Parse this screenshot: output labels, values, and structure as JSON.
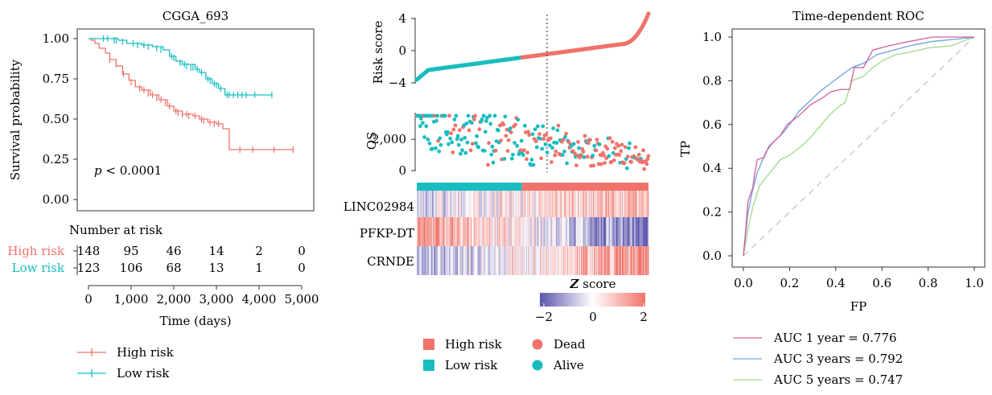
{
  "chart_data": [
    {
      "type": "line",
      "title": "CGGA_693",
      "xlabel": "Time (days)",
      "ylabel": "Survival probability",
      "xlim": [
        0,
        5000
      ],
      "ylim": [
        0,
        1
      ],
      "x_ticks": [
        "0",
        "1,000",
        "2,000",
        "3,000",
        "4,000",
        "5,000"
      ],
      "y_ticks": [
        "0.00",
        "0.25",
        "0.50",
        "0.75",
        "1.00"
      ],
      "annotation": {
        "p": "p",
        "rest": " < 0.0001"
      },
      "series": [
        {
          "name": "High risk",
          "color": "#f0736b",
          "steps": [
            [
              0,
              1.0
            ],
            [
              60,
              0.99
            ],
            [
              150,
              0.97
            ],
            [
              250,
              0.94
            ],
            [
              400,
              0.91
            ],
            [
              500,
              0.87
            ],
            [
              650,
              0.83
            ],
            [
              800,
              0.78
            ],
            [
              950,
              0.74
            ],
            [
              1100,
              0.7
            ],
            [
              1250,
              0.68
            ],
            [
              1450,
              0.65
            ],
            [
              1650,
              0.62
            ],
            [
              1850,
              0.58
            ],
            [
              2000,
              0.55
            ],
            [
              2200,
              0.53
            ],
            [
              2450,
              0.52
            ],
            [
              2600,
              0.5
            ],
            [
              2800,
              0.48
            ],
            [
              3000,
              0.47
            ],
            [
              3150,
              0.44
            ],
            [
              3300,
              0.31
            ],
            [
              4800,
              0.31
            ]
          ],
          "censors": [
            [
              500,
              0.87
            ],
            [
              650,
              0.84
            ],
            [
              820,
              0.78
            ],
            [
              1000,
              0.73
            ],
            [
              1200,
              0.69
            ],
            [
              1300,
              0.68
            ],
            [
              1400,
              0.66
            ],
            [
              1500,
              0.65
            ],
            [
              1600,
              0.63
            ],
            [
              1700,
              0.62
            ],
            [
              1800,
              0.6
            ],
            [
              1900,
              0.58
            ],
            [
              2050,
              0.55
            ],
            [
              2100,
              0.54
            ],
            [
              2200,
              0.53
            ],
            [
              2300,
              0.53
            ],
            [
              2350,
              0.52
            ],
            [
              2500,
              0.52
            ],
            [
              2650,
              0.5
            ],
            [
              2700,
              0.49
            ],
            [
              2850,
              0.48
            ],
            [
              2950,
              0.47
            ],
            [
              3050,
              0.47
            ],
            [
              3550,
              0.31
            ],
            [
              3850,
              0.31
            ],
            [
              4350,
              0.31
            ],
            [
              4800,
              0.31
            ]
          ]
        },
        {
          "name": "Low risk",
          "color": "#19bdbf",
          "steps": [
            [
              0,
              1.0
            ],
            [
              700,
              0.99
            ],
            [
              900,
              0.97
            ],
            [
              1250,
              0.96
            ],
            [
              1500,
              0.95
            ],
            [
              1750,
              0.93
            ],
            [
              1900,
              0.89
            ],
            [
              2050,
              0.86
            ],
            [
              2200,
              0.84
            ],
            [
              2500,
              0.81
            ],
            [
              2600,
              0.79
            ],
            [
              2750,
              0.75
            ],
            [
              2900,
              0.72
            ],
            [
              3050,
              0.69
            ],
            [
              3200,
              0.65
            ],
            [
              4300,
              0.65
            ]
          ],
          "censors": [
            [
              350,
              1.0
            ],
            [
              450,
              1.0
            ],
            [
              600,
              0.99
            ],
            [
              650,
              0.99
            ],
            [
              800,
              0.98
            ],
            [
              1050,
              0.97
            ],
            [
              1150,
              0.96
            ],
            [
              1300,
              0.96
            ],
            [
              1400,
              0.95
            ],
            [
              1600,
              0.94
            ],
            [
              1700,
              0.93
            ],
            [
              1950,
              0.89
            ],
            [
              2000,
              0.88
            ],
            [
              2150,
              0.85
            ],
            [
              2250,
              0.84
            ],
            [
              2300,
              0.83
            ],
            [
              2400,
              0.82
            ],
            [
              2450,
              0.82
            ],
            [
              2550,
              0.81
            ],
            [
              2650,
              0.79
            ],
            [
              2800,
              0.75
            ],
            [
              2850,
              0.74
            ],
            [
              2950,
              0.72
            ],
            [
              3000,
              0.71
            ],
            [
              3100,
              0.69
            ],
            [
              3250,
              0.65
            ],
            [
              3300,
              0.65
            ],
            [
              3400,
              0.65
            ],
            [
              3500,
              0.65
            ],
            [
              3600,
              0.65
            ],
            [
              3700,
              0.65
            ],
            [
              3900,
              0.65
            ],
            [
              4300,
              0.65
            ]
          ]
        }
      ],
      "risk_table": {
        "title": "Number at risk",
        "rows": [
          {
            "name": "High risk",
            "values": [
              "148",
              "95",
              "46",
              "14",
              "2",
              "0"
            ]
          },
          {
            "name": "Low risk",
            "values": [
              "123",
              "106",
              "68",
              "13",
              "1",
              "0"
            ]
          }
        ]
      },
      "legend": [
        "High risk",
        "Low risk"
      ]
    },
    {
      "type": "scatter",
      "panel": "risk-score",
      "ylabel": "Risk score",
      "y_ticks": [
        "4",
        "0",
        "−4"
      ],
      "ylim": [
        -4.6,
        4.6
      ],
      "n_patients": 271,
      "cutoff_index": 123,
      "low_color": "#19bdbf",
      "high_color": "#f0736b",
      "score_range": [
        -3.6,
        4.6
      ]
    },
    {
      "type": "scatter",
      "panel": "os",
      "ylabel": "OS",
      "y_ticks": [
        "2,000",
        "0"
      ],
      "ylim": [
        0,
        3600
      ],
      "dead_color": "#f0736b",
      "alive_color": "#19bdbf"
    },
    {
      "type": "heatmap",
      "rows": [
        "LINC02984",
        "PFKP-DT",
        "CRNDE"
      ],
      "scale_title": {
        "z": "Z",
        "rest": " score"
      },
      "scale_ticks": [
        "−2",
        "0",
        "2"
      ],
      "low_color": "#5b55ad",
      "mid_color": "#ffffff",
      "high_color": "#f0736b",
      "legend": [
        {
          "label": "High risk",
          "shape": "square",
          "color": "#f0736b"
        },
        {
          "label": "Low risk",
          "shape": "square",
          "color": "#19bdbf"
        },
        {
          "label": "Dead",
          "shape": "circle",
          "color": "#f0736b"
        },
        {
          "label": "Alive",
          "shape": "circle",
          "color": "#19bdbf"
        }
      ]
    },
    {
      "type": "line",
      "title": "Time-dependent ROC",
      "xlabel": "FP",
      "ylabel": "TP",
      "xlim": [
        0,
        1
      ],
      "ylim": [
        0,
        1
      ],
      "ticks": [
        "0.0",
        "0.2",
        "0.4",
        "0.6",
        "0.8",
        "1.0"
      ],
      "series": [
        {
          "name": "AUC 1 year = 0.776",
          "color": "#d4609a",
          "points": [
            [
              0,
              0
            ],
            [
              0.01,
              0.12
            ],
            [
              0.02,
              0.25
            ],
            [
              0.04,
              0.31
            ],
            [
              0.05,
              0.38
            ],
            [
              0.06,
              0.44
            ],
            [
              0.09,
              0.45
            ],
            [
              0.11,
              0.5
            ],
            [
              0.16,
              0.55
            ],
            [
              0.19,
              0.6
            ],
            [
              0.24,
              0.64
            ],
            [
              0.29,
              0.69
            ],
            [
              0.34,
              0.72
            ],
            [
              0.38,
              0.75
            ],
            [
              0.42,
              0.76
            ],
            [
              0.46,
              0.76
            ],
            [
              0.48,
              0.86
            ],
            [
              0.52,
              0.86
            ],
            [
              0.56,
              0.94
            ],
            [
              0.63,
              0.96
            ],
            [
              0.72,
              0.98
            ],
            [
              0.82,
              1.0
            ],
            [
              1.0,
              1.0
            ]
          ]
        },
        {
          "name": "AUC 3 years = 0.792",
          "color": "#6fa1dc",
          "points": [
            [
              0,
              0
            ],
            [
              0.01,
              0.1
            ],
            [
              0.02,
              0.2
            ],
            [
              0.04,
              0.3
            ],
            [
              0.06,
              0.38
            ],
            [
              0.08,
              0.43
            ],
            [
              0.1,
              0.48
            ],
            [
              0.13,
              0.52
            ],
            [
              0.17,
              0.56
            ],
            [
              0.2,
              0.6
            ],
            [
              0.24,
              0.66
            ],
            [
              0.28,
              0.7
            ],
            [
              0.33,
              0.75
            ],
            [
              0.38,
              0.79
            ],
            [
              0.43,
              0.83
            ],
            [
              0.47,
              0.86
            ],
            [
              0.52,
              0.88
            ],
            [
              0.58,
              0.92
            ],
            [
              0.65,
              0.94
            ],
            [
              0.72,
              0.96
            ],
            [
              0.82,
              0.98
            ],
            [
              0.92,
              0.99
            ],
            [
              1.0,
              1.0
            ]
          ]
        },
        {
          "name": "AUC 5 years = 0.747",
          "color": "#a0d98a",
          "points": [
            [
              0,
              0
            ],
            [
              0.02,
              0.12
            ],
            [
              0.04,
              0.22
            ],
            [
              0.07,
              0.32
            ],
            [
              0.1,
              0.36
            ],
            [
              0.13,
              0.4
            ],
            [
              0.16,
              0.44
            ],
            [
              0.2,
              0.46
            ],
            [
              0.25,
              0.5
            ],
            [
              0.29,
              0.54
            ],
            [
              0.33,
              0.59
            ],
            [
              0.37,
              0.64
            ],
            [
              0.41,
              0.68
            ],
            [
              0.44,
              0.7
            ],
            [
              0.47,
              0.8
            ],
            [
              0.52,
              0.82
            ],
            [
              0.56,
              0.86
            ],
            [
              0.6,
              0.89
            ],
            [
              0.66,
              0.92
            ],
            [
              0.72,
              0.93
            ],
            [
              0.8,
              0.95
            ],
            [
              0.9,
              0.96
            ],
            [
              0.95,
              0.98
            ],
            [
              1.0,
              1.0
            ]
          ]
        }
      ]
    }
  ]
}
